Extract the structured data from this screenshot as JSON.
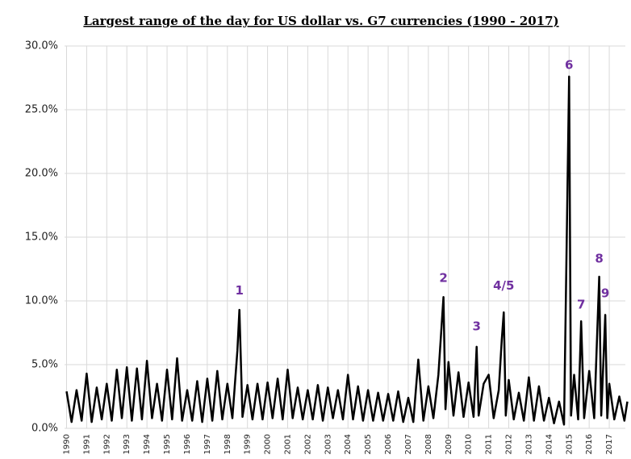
{
  "chart_data": {
    "type": "line",
    "title": "Largest range of the day for US dollar vs. G7 currencies (1990 - 2017)",
    "x": [
      1990,
      1990.25,
      1990.5,
      1990.75,
      1991,
      1991.25,
      1991.5,
      1991.75,
      1992,
      1992.25,
      1992.5,
      1992.75,
      1993,
      1993.25,
      1993.5,
      1993.75,
      1994,
      1994.25,
      1994.5,
      1994.75,
      1995,
      1995.25,
      1995.5,
      1995.75,
      1996,
      1996.25,
      1996.5,
      1996.75,
      1997,
      1997.25,
      1997.5,
      1997.75,
      1998,
      1998.25,
      1998.5,
      1998.6,
      1998.75,
      1999,
      1999.25,
      1999.5,
      1999.75,
      2000,
      2000.25,
      2000.5,
      2000.75,
      2001,
      2001.25,
      2001.5,
      2001.75,
      2002,
      2002.25,
      2002.5,
      2002.75,
      2003,
      2003.25,
      2003.5,
      2003.75,
      2004,
      2004.25,
      2004.5,
      2004.75,
      2005,
      2005.25,
      2005.5,
      2005.75,
      2006,
      2006.25,
      2006.5,
      2006.75,
      2007,
      2007.25,
      2007.5,
      2007.75,
      2008,
      2008.25,
      2008.5,
      2008.75,
      2008.85,
      2009,
      2009.25,
      2009.5,
      2009.75,
      2010,
      2010.25,
      2010.4,
      2010.5,
      2010.75,
      2011,
      2011.25,
      2011.5,
      2011.65,
      2011.75,
      2011.85,
      2012,
      2012.25,
      2012.5,
      2012.75,
      2013,
      2013.25,
      2013.5,
      2013.75,
      2014,
      2014.25,
      2014.5,
      2014.75,
      2015,
      2015.1,
      2015.25,
      2015.45,
      2015.6,
      2015.75,
      2016,
      2016.25,
      2016.5,
      2016.6,
      2016.8,
      2016.9,
      2017,
      2017.25,
      2017.5,
      2017.75,
      2017.9
    ],
    "values": [
      2.9,
      0.5,
      3.0,
      0.6,
      4.3,
      0.5,
      3.2,
      0.7,
      3.5,
      0.6,
      4.6,
      0.8,
      4.8,
      0.6,
      4.7,
      0.7,
      5.3,
      0.8,
      3.5,
      0.6,
      4.6,
      0.7,
      5.5,
      0.6,
      3.0,
      0.6,
      3.7,
      0.5,
      3.9,
      0.6,
      4.5,
      0.7,
      3.5,
      0.8,
      6.1,
      9.3,
      0.9,
      3.4,
      0.7,
      3.5,
      0.7,
      3.6,
      0.8,
      3.9,
      0.7,
      4.6,
      0.8,
      3.2,
      0.7,
      3.0,
      0.7,
      3.4,
      0.6,
      3.2,
      0.8,
      3.0,
      0.7,
      4.2,
      0.7,
      3.3,
      0.6,
      3.0,
      0.6,
      2.8,
      0.6,
      2.7,
      0.6,
      2.9,
      0.5,
      2.4,
      0.5,
      5.4,
      0.6,
      3.3,
      0.8,
      4.2,
      10.3,
      1.5,
      5.2,
      1.0,
      4.4,
      0.9,
      3.6,
      0.9,
      6.4,
      1.0,
      3.5,
      4.2,
      0.8,
      3.0,
      6.9,
      9.1,
      1.0,
      3.8,
      0.7,
      2.8,
      0.6,
      4.0,
      0.6,
      3.3,
      0.6,
      2.4,
      0.4,
      2.1,
      0.3,
      27.6,
      1.0,
      4.2,
      0.7,
      8.4,
      0.8,
      4.5,
      0.8,
      11.9,
      1.0,
      8.9,
      0.8,
      3.5,
      0.7,
      2.5,
      0.6,
      2.1
    ],
    "color": "#000000",
    "xlim": [
      1989.9,
      2017.8
    ],
    "xticks": [
      1990,
      1991,
      1992,
      1993,
      1994,
      1995,
      1996,
      1997,
      1998,
      1999,
      2000,
      2001,
      2002,
      2003,
      2004,
      2005,
      2006,
      2007,
      2008,
      2009,
      2010,
      2011,
      2012,
      2013,
      2014,
      2015,
      2016,
      2017
    ],
    "ylim": [
      0,
      30
    ],
    "yticks": [
      {
        "value": 0,
        "label": "0.0%"
      },
      {
        "value": 5,
        "label": "5.0%"
      },
      {
        "value": 10,
        "label": "10.0%"
      },
      {
        "value": 15,
        "label": "15.0%"
      },
      {
        "value": 20,
        "label": "20.0%"
      },
      {
        "value": 25,
        "label": "25.0%"
      },
      {
        "value": 30,
        "label": "30.0%"
      }
    ],
    "grid": true,
    "annotations": [
      {
        "text": "1",
        "x": 1998.6,
        "y": 10.5
      },
      {
        "text": "2",
        "x": 2008.75,
        "y": 11.5
      },
      {
        "text": "3",
        "x": 2010.4,
        "y": 7.7
      },
      {
        "text": "4/5",
        "x": 2011.75,
        "y": 10.9
      },
      {
        "text": "6",
        "x": 2015.0,
        "y": 28.2
      },
      {
        "text": "7",
        "x": 2015.6,
        "y": 9.4
      },
      {
        "text": "8",
        "x": 2016.5,
        "y": 13.0
      },
      {
        "text": "9",
        "x": 2016.8,
        "y": 10.3
      }
    ]
  }
}
